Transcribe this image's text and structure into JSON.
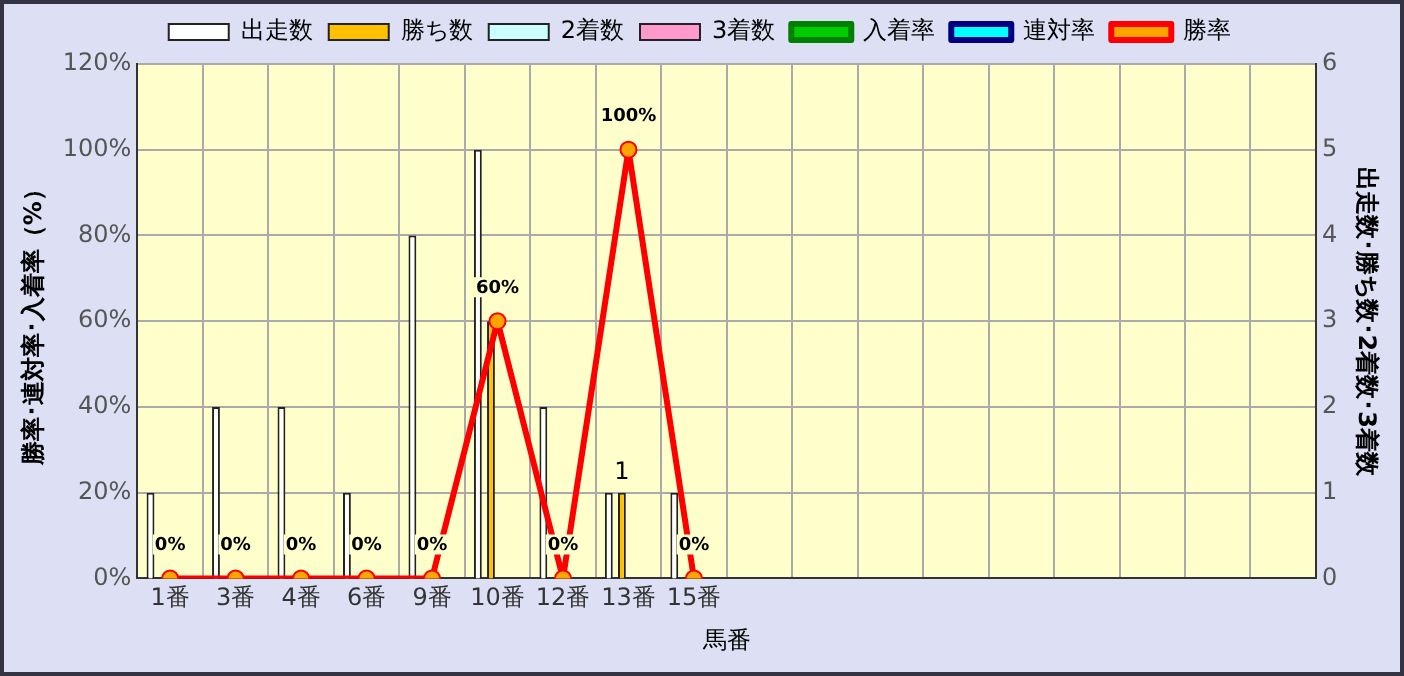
{
  "chart_data": {
    "type": "bar",
    "xlabel": "馬番",
    "ylabel": "勝率･連対率･入着率（%）",
    "y2label": "出走数･勝ち数･2着数･3着数",
    "categories": [
      "1番",
      "3番",
      "4番",
      "6番",
      "9番",
      "10番",
      "12番",
      "13番",
      "15番",
      null,
      null,
      null,
      null,
      null,
      null,
      null,
      null,
      null
    ],
    "series": [
      {
        "name": "出走数",
        "axis": "y2",
        "color": "#ffffff",
        "values": [
          1,
          2,
          2,
          1,
          4,
          5,
          2,
          1,
          1,
          null,
          null,
          null,
          null,
          null,
          null,
          null,
          null,
          null
        ]
      },
      {
        "name": "勝ち数",
        "axis": "y2",
        "color": "#ffc000",
        "values": [
          0,
          0,
          0,
          0,
          0,
          3,
          0,
          1,
          0,
          null,
          null,
          null,
          null,
          null,
          null,
          null,
          null,
          null
        ],
        "value_labels": [
          null,
          null,
          null,
          null,
          null,
          null,
          null,
          "1",
          null,
          null,
          null,
          null,
          null,
          null,
          null,
          null,
          null,
          null
        ]
      },
      {
        "name": "2着数",
        "axis": "y2",
        "color": "#ccffff",
        "values": [
          0,
          0,
          0,
          0,
          0,
          0,
          0,
          0,
          0,
          null,
          null,
          null,
          null,
          null,
          null,
          null,
          null,
          null
        ]
      },
      {
        "name": "3着数",
        "axis": "y2",
        "color": "#ff99cc",
        "values": [
          0,
          0,
          0,
          0,
          0,
          0,
          0,
          0,
          0,
          null,
          null,
          null,
          null,
          null,
          null,
          null,
          null,
          null
        ]
      },
      {
        "name": "入着率",
        "type": "line",
        "axis": "y",
        "color": "#008000",
        "marker": "triangle",
        "values": [
          null,
          null,
          null,
          null,
          null,
          null,
          null,
          null,
          null,
          null,
          null,
          null,
          null,
          null,
          null,
          null,
          null,
          null
        ]
      },
      {
        "name": "連対率",
        "type": "line",
        "axis": "y",
        "color": "#000080",
        "marker": "diamond",
        "values": [
          null,
          null,
          null,
          null,
          null,
          null,
          null,
          null,
          null,
          null,
          null,
          null,
          null,
          null,
          null,
          null,
          null,
          null
        ]
      },
      {
        "name": "勝率",
        "type": "line",
        "axis": "y",
        "color": "#ff0000",
        "marker": "circle",
        "values": [
          0,
          0,
          0,
          0,
          0,
          60,
          0,
          100,
          0,
          null,
          null,
          null,
          null,
          null,
          null,
          null,
          null,
          null
        ],
        "value_labels": [
          "0%",
          "0%",
          "0%",
          "0%",
          "0%",
          "60%",
          "0%",
          "100%",
          "0%",
          null,
          null,
          null,
          null,
          null,
          null,
          null,
          null,
          null
        ]
      }
    ],
    "ylim": [
      0,
      120
    ],
    "yticks": [
      {
        "value": 0,
        "label": "0%"
      },
      {
        "value": 20,
        "label": "20%"
      },
      {
        "value": 40,
        "label": "40%"
      },
      {
        "value": 60,
        "label": "60%"
      },
      {
        "value": 80,
        "label": "80%"
      },
      {
        "value": 100,
        "label": "100%"
      },
      {
        "value": 120,
        "label": "120%"
      }
    ],
    "y2lim": [
      0,
      6
    ],
    "y2ticks": [
      0,
      1,
      2,
      3,
      4,
      5,
      6
    ],
    "grid": true,
    "legend": "top"
  }
}
